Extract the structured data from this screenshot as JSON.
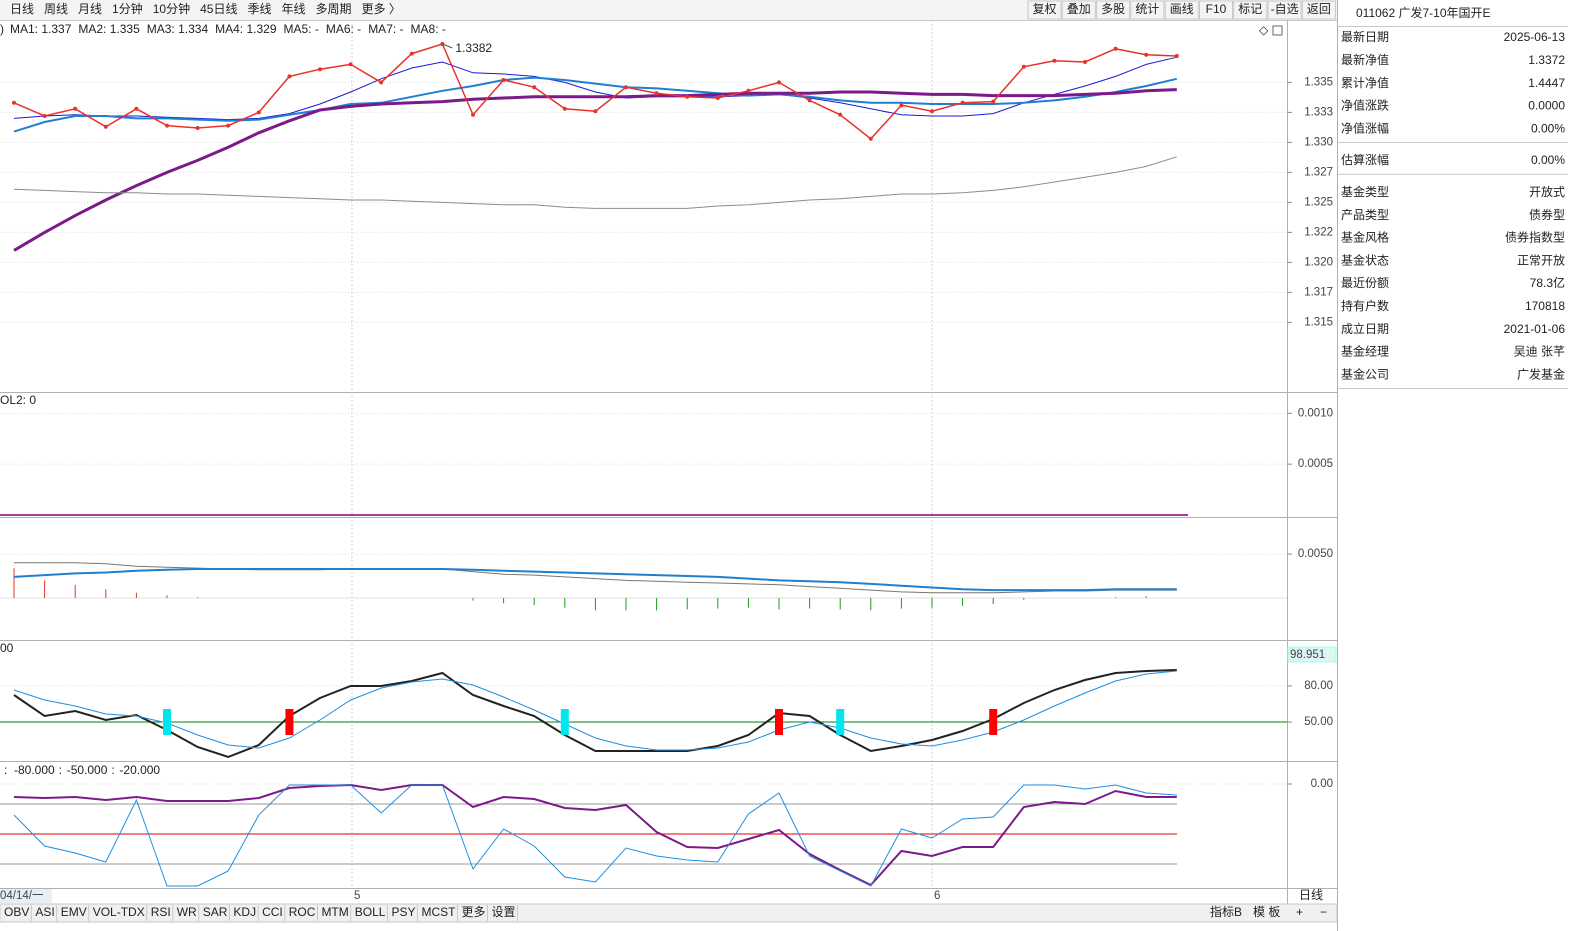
{
  "toolbar": {
    "tabs": [
      "日线",
      "周线",
      "月线",
      "1分钟",
      "10分钟",
      "45日线",
      "季线",
      "年线",
      "多周期",
      "更多 〉"
    ],
    "active_color": "#e00000",
    "buttons": [
      "复权",
      "叠加",
      "多股",
      "统计",
      "画线",
      "F10",
      "标记",
      "-自选",
      "返回"
    ]
  },
  "main": {
    "ylim": [
      1.3092,
      1.3402
    ],
    "yticks": [
      1.335,
      {
        "value": 1.3325,
        "label": "1.333"
      },
      {
        "value": 1.33,
        "label": "1.330"
      },
      {
        "value": 1.3275,
        "label": "1.327"
      },
      1.325,
      {
        "value": 1.3225,
        "label": "1.322"
      },
      {
        "value": 1.32,
        "label": "1.320"
      },
      {
        "value": 1.3175,
        "label": "1.317"
      },
      1.315
    ],
    "price": {
      "color": "#e8322a",
      "values": [
        1.3333,
        1.3322,
        1.3328,
        1.3313,
        1.3328,
        1.3314,
        1.3312,
        1.3314,
        1.3325,
        1.3355,
        1.3361,
        1.3365,
        1.335,
        1.3374,
        1.3382,
        1.3323,
        1.3352,
        1.3346,
        1.3328,
        1.3326,
        1.3346,
        1.3341,
        1.3338,
        1.3337,
        1.3343,
        1.335,
        1.3335,
        1.3323,
        1.3303,
        1.3331,
        1.3326,
        1.3333,
        1.3334,
        1.3363,
        1.3368,
        1.3367,
        1.3378,
        1.3373,
        1.3372
      ]
    },
    "annotation": "1.3382",
    "series": [
      {
        "legend": "MA1: 1.337",
        "color": "#1a1ad6",
        "width": 1,
        "values": [
          1.332,
          1.3322,
          1.3323,
          1.3322,
          1.3322,
          1.3321,
          1.332,
          1.3319,
          1.332,
          1.3324,
          1.3332,
          1.3342,
          1.3353,
          1.3362,
          1.3367,
          1.3358,
          1.3357,
          1.3355,
          1.335,
          1.3342,
          1.3337,
          1.3338,
          1.3338,
          1.3338,
          1.3339,
          1.334,
          1.3337,
          1.3333,
          1.3328,
          1.3323,
          1.3322,
          1.3322,
          1.3324,
          1.3333,
          1.334,
          1.3347,
          1.3355,
          1.3365,
          1.3371
        ]
      },
      {
        "legend": "MA2: 1.335",
        "color": "#1f7fd0",
        "width": 2,
        "values": [
          1.3309,
          1.3317,
          1.3322,
          1.3322,
          1.332,
          1.332,
          1.3319,
          1.3318,
          1.3319,
          1.3323,
          1.3327,
          1.3332,
          1.3333,
          1.3338,
          1.3343,
          1.3347,
          1.3352,
          1.3354,
          1.3352,
          1.3349,
          1.3346,
          1.3345,
          1.3343,
          1.3341,
          1.3339,
          1.334,
          1.3338,
          1.3335,
          1.3333,
          1.3333,
          1.3332,
          1.3332,
          1.3332,
          1.3333,
          1.3335,
          1.3338,
          1.3342,
          1.3347,
          1.3353
        ]
      },
      {
        "legend": "MA3: 1.334",
        "color": "#7d1a8a",
        "width": 3,
        "values": [
          1.321,
          1.3225,
          1.3239,
          1.3252,
          1.3264,
          1.3275,
          1.3285,
          1.3296,
          1.3308,
          1.3318,
          1.3327,
          1.333,
          1.3332,
          1.3333,
          1.3334,
          1.3336,
          1.3337,
          1.3338,
          1.3338,
          1.3338,
          1.3338,
          1.3339,
          1.3339,
          1.334,
          1.3341,
          1.3341,
          1.3341,
          1.3342,
          1.3342,
          1.3341,
          1.334,
          1.334,
          1.3339,
          1.3339,
          1.3339,
          1.334,
          1.3341,
          1.3343,
          1.3344
        ]
      },
      {
        "legend": "MA4: 1.329",
        "color": "#8c8c8c",
        "width": 1,
        "values": [
          1.3261,
          1.326,
          1.3259,
          1.3258,
          1.3258,
          1.3257,
          1.3257,
          1.3256,
          1.3255,
          1.3254,
          1.3253,
          1.3252,
          1.3252,
          1.3251,
          1.325,
          1.3249,
          1.3248,
          1.3248,
          1.3246,
          1.3245,
          1.3245,
          1.3245,
          1.3245,
          1.3247,
          1.3248,
          1.325,
          1.3252,
          1.3253,
          1.3255,
          1.3257,
          1.3257,
          1.3258,
          1.326,
          1.3263,
          1.3267,
          1.3271,
          1.3275,
          1.328,
          1.3288
        ]
      },
      {
        "legend": "MA5: -",
        "color": "#009900"
      },
      {
        "legend": "MA6: -",
        "color": "#00c8c8"
      },
      {
        "legend": "MA7: -",
        "color": "#333333"
      },
      {
        "legend": "MA8: -",
        "color": "#1a1ad6"
      }
    ]
  },
  "panel2": {
    "header": "OL2: 0",
    "color": "#800080",
    "ylim": [
      -2e-05,
      0.0012
    ],
    "yticks": [
      {
        "value": 0.001,
        "label": "0.0010"
      },
      {
        "value": 0.0005,
        "label": "0.0005"
      }
    ]
  },
  "panel3": {
    "ylim": [
      -0.00477,
      0.00909
    ],
    "yticks": [
      {
        "value": 0.005,
        "label": "0.0050"
      }
    ],
    "lines": [
      {
        "color": "#777777",
        "values": [
          0.004,
          0.004,
          0.004,
          0.0039,
          0.0036,
          0.0035,
          0.0034,
          0.0033,
          0.0032,
          0.0032,
          0.0032,
          0.0033,
          0.0033,
          0.0033,
          0.0033,
          0.003,
          0.0027,
          0.0026,
          0.0024,
          0.0022,
          0.002,
          0.0019,
          0.0018,
          0.0017,
          0.0016,
          0.0015,
          0.0013,
          0.0011,
          0.0009,
          0.0007,
          0.0006,
          0.0006,
          0.0006,
          0.0007,
          0.0008,
          0.0008,
          0.0009,
          0.0009,
          0.0009
        ]
      },
      {
        "color": "#1f7fd0",
        "values": [
          0.0024,
          0.0026,
          0.0028,
          0.0029,
          0.0031,
          0.0032,
          0.0033,
          0.0033,
          0.0033,
          0.0033,
          0.0033,
          0.0033,
          0.0033,
          0.0033,
          0.0033,
          0.0032,
          0.0031,
          0.003,
          0.0029,
          0.0028,
          0.0027,
          0.0026,
          0.0025,
          0.0024,
          0.0022,
          0.002,
          0.0019,
          0.0018,
          0.0016,
          0.0014,
          0.0012,
          0.001,
          0.0009,
          0.0009,
          0.0009,
          0.0009,
          0.001,
          0.001,
          0.001
        ]
      }
    ],
    "bars": {
      "up_color": "#e8322a",
      "down_color": "#1a9a1a",
      "values": [
        0.0034,
        0.002,
        0.0015,
        0.001,
        0.0006,
        0.0003,
        0.0001,
        0,
        0,
        0,
        0,
        0,
        0,
        0,
        0,
        -0.0003,
        -0.0006,
        -0.0008,
        -0.0011,
        -0.0014,
        -0.0014,
        -0.0014,
        -0.0013,
        -0.0012,
        -0.0011,
        -0.0013,
        -0.0012,
        -0.0013,
        -0.0014,
        -0.0012,
        -0.0011,
        -0.0009,
        -0.0007,
        -0.0002,
        0,
        0,
        0.0001,
        0.0002,
        0
      ]
    }
  },
  "panel4": {
    "header": "00",
    "header_color": "#008000",
    "readout": "98.951",
    "ylim": [
      17.5,
      117.5
    ],
    "yticks": [
      {
        "value": 80,
        "label": "80.00"
      },
      {
        "value": 50,
        "label": "50.00"
      }
    ],
    "midline": {
      "value": 50,
      "color": "#008000"
    },
    "lines": [
      {
        "color": "#222222",
        "width": 2,
        "values": [
          72.5,
          55,
          59.2,
          51.7,
          55.8,
          43.3,
          29.2,
          20.8,
          30.8,
          55,
          70,
          80,
          80,
          84.2,
          90.8,
          72.5,
          63.3,
          55,
          39.2,
          25.8,
          25.8,
          25.8,
          25.8,
          30,
          39.2,
          57.5,
          55,
          39.2,
          25.8,
          30,
          35,
          42.5,
          52.5,
          65.8,
          76.7,
          85,
          90.8,
          92.5,
          93.3
        ]
      },
      {
        "color": "#1f8fe0",
        "width": 1,
        "values": [
          76.7,
          68.3,
          63.3,
          56.7,
          55,
          49.2,
          39.2,
          30.8,
          28.3,
          36.7,
          51.7,
          68.3,
          78.3,
          83.3,
          85.8,
          80.8,
          70.8,
          60,
          48.3,
          36.7,
          30,
          26.7,
          26.7,
          28.3,
          33.3,
          43.3,
          50,
          45,
          36.7,
          31.7,
          30,
          35,
          41.7,
          51.7,
          63.3,
          74.2,
          84.2,
          90,
          92.5
        ]
      }
    ],
    "signals": [
      {
        "index": 5,
        "color": "#00e5ee"
      },
      {
        "index": 9,
        "color": "#ff0000"
      },
      {
        "index": 18,
        "color": "#00e5ee"
      },
      {
        "index": 25,
        "color": "#ff0000"
      },
      {
        "index": 27,
        "color": "#00e5ee"
      },
      {
        "index": 32,
        "color": "#ff0000"
      }
    ]
  },
  "panel5": {
    "ylim": [
      -104,
      22
    ],
    "yticks": [
      {
        "value": 0,
        "label": "0.00"
      }
    ],
    "levels": [
      {
        "value": -80,
        "label": "-80.000",
        "color": "#999999"
      },
      {
        "value": -50,
        "label": "-50.000",
        "color": "#e00000"
      },
      {
        "value": -20,
        "label": "-20.000",
        "color": "#999999"
      }
    ],
    "lines": [
      {
        "color": "#7d1a8a",
        "width": 2,
        "values": [
          -13,
          -14,
          -13,
          -16,
          -13,
          -17,
          -17,
          -17,
          -14,
          -4,
          -2,
          -1,
          -6,
          -1,
          -1,
          -23,
          -13,
          -15,
          -24,
          -26,
          -21,
          -48,
          -63,
          -64,
          -55,
          -46,
          -70,
          -86,
          -101,
          -67,
          -72,
          -63,
          -63,
          -23,
          -18,
          -20,
          -7,
          -13,
          -13
        ]
      },
      {
        "color": "#1f8fe0",
        "width": 1,
        "values": [
          -31,
          -62,
          -69,
          -78,
          -16,
          -102,
          -102,
          -87,
          -31,
          -1,
          -1,
          -1,
          -29,
          -1,
          -1,
          -85,
          -45,
          -62,
          -93,
          -98,
          -64,
          -72,
          -76,
          -78,
          -30,
          -9,
          -72,
          -87,
          -102,
          -45,
          -54,
          -35,
          -33,
          -1,
          -1,
          -5,
          -1,
          -9,
          -11
        ]
      }
    ]
  },
  "dates": [
    "04/14/一",
    "5",
    "6"
  ],
  "period": "日线",
  "bottom_tabs": [
    "OBV",
    "ASI",
    "EMV",
    "VOL-TDX",
    "RSI",
    "WR",
    "SAR",
    "KDJ",
    "CCI",
    "ROC",
    "MTM",
    "BOLL",
    "PSY",
    "MCST",
    "更多",
    "设置"
  ],
  "bottom_tabs_highlight": {
    "index": 15,
    "color": "#e00000"
  },
  "bottom_right": [
    "指标B",
    "模 板",
    "+",
    "−"
  ],
  "info": {
    "title": "011062 广发7-10年国开E",
    "groups": [
      [
        [
          "最新日期",
          "2025-06-13"
        ],
        [
          "最新净值",
          "1.3372"
        ],
        [
          "累计净值",
          "1.4447"
        ],
        [
          "净值涨跌",
          "0.0000"
        ],
        [
          "净值涨幅",
          "0.00%"
        ]
      ],
      [
        [
          "估算涨幅",
          "0.00%"
        ]
      ],
      [
        [
          "基金类型",
          "开放式"
        ],
        [
          "产品类型",
          "债券型"
        ],
        [
          "基金风格",
          "债券指数型"
        ],
        [
          "基金状态",
          "正常开放"
        ],
        [
          "最近份额",
          "78.3亿"
        ],
        [
          "持有户数",
          "170818"
        ],
        [
          "成立日期",
          "2021-01-06"
        ],
        [
          "基金经理",
          "吴迪 张芊"
        ],
        [
          "基金公司",
          "广发基金"
        ]
      ]
    ]
  }
}
